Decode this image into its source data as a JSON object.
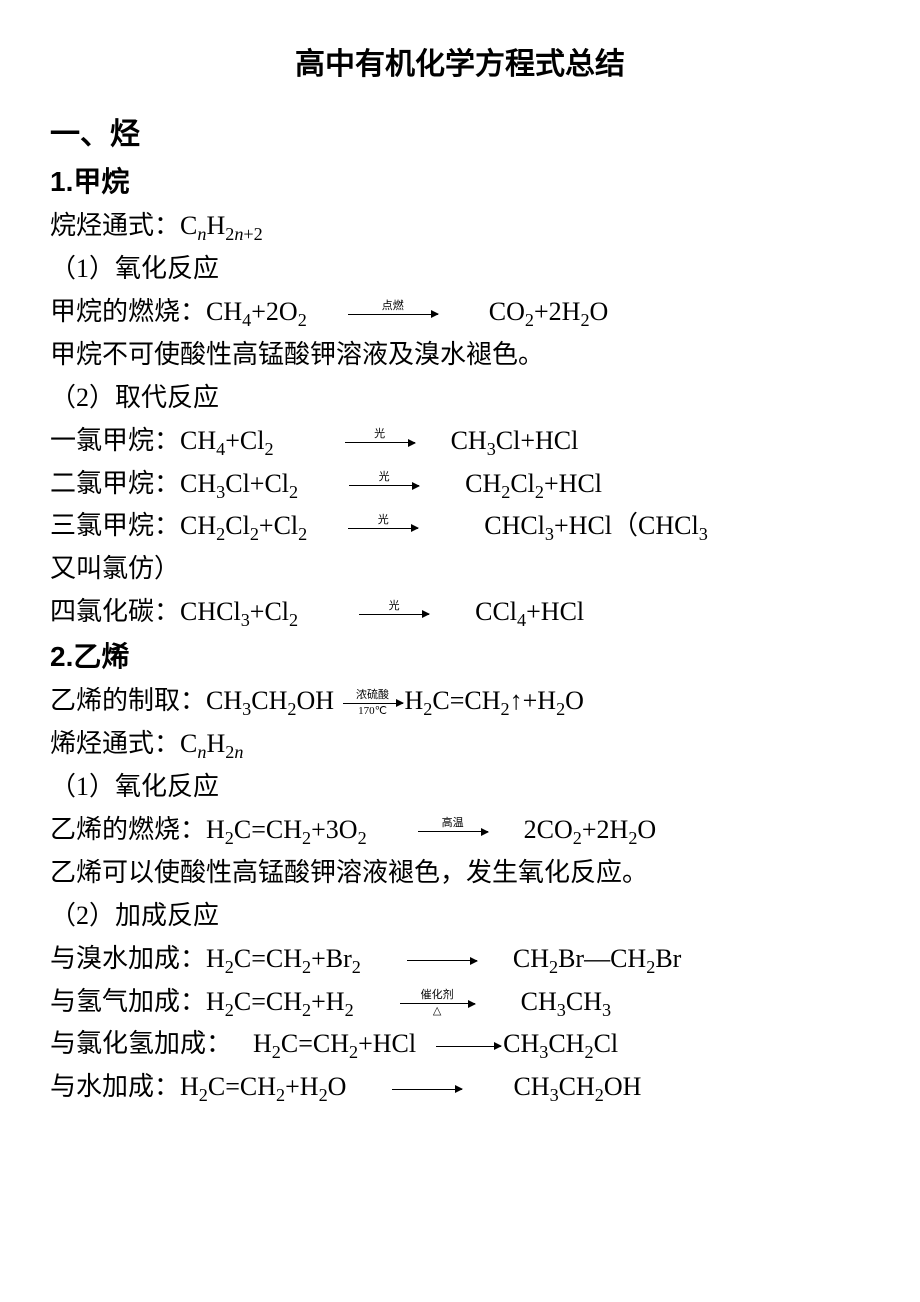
{
  "doc": {
    "title": "高中有机化学方程式总结",
    "background_color": "#ffffff",
    "text_color": "#000000",
    "title_fontsize": 30,
    "heading_fontsize": 30,
    "body_fontsize": 26,
    "arrow_label_fontsize": 11,
    "lines": {
      "sec1": "一、烃",
      "sub1": "1.甲烷",
      "alkane_formula_label": "烷烃通式：",
      "alkane_formula": "C<sub><span class='subi'>n</span></sub>H<sub>2<span class='subi'>n</span>+2</sub>",
      "r1_1": "（1）氧化反应",
      "methane_burn_label": "甲烷的燃烧：",
      "methane_burn_lhs": "CH<sub>4</sub>+2O<sub>2</sub>",
      "methane_burn_cond": "点燃",
      "methane_burn_rhs": "CO<sub>2</sub>+2H<sub>2</sub>O",
      "methane_note": "甲烷不可使酸性高锰酸钾溶液及溴水褪色。",
      "r1_2": "（2）取代反应",
      "mono_label": "一氯甲烷：",
      "mono_lhs": "CH<sub>4</sub>+Cl<sub>2</sub>",
      "light": "光",
      "mono_rhs": "CH<sub>3</sub>Cl+HCl",
      "di_label": "二氯甲烷：",
      "di_lhs": "CH<sub>3</sub>Cl+Cl<sub>2</sub>",
      "di_rhs": "CH<sub>2</sub>Cl<sub>2</sub>+HCl",
      "tri_label": "三氯甲烷：",
      "tri_lhs": "CH<sub>2</sub>Cl<sub>2</sub>+Cl<sub>2</sub>",
      "tri_rhs_a": "CHCl<sub>3</sub>+HCl（CHCl<sub>3</sub>",
      "tri_rhs_b": "又叫氯仿）",
      "tetra_label": "四氯化碳：",
      "tetra_lhs": "CHCl<sub>3</sub>+Cl<sub>2</sub>",
      "tetra_rhs": "CCl<sub>4</sub>+HCl",
      "sub2": "2.乙烯",
      "ethene_prep_label": "乙烯的制取：",
      "ethene_prep_lhs": "CH<sub>3</sub>CH<sub>2</sub>OH",
      "ethene_prep_top": "浓硫酸",
      "ethene_prep_bot": "170℃",
      "ethene_prep_rhs": "H<sub>2</sub>C=CH<sub>2</sub>↑+H<sub>2</sub>O",
      "alkene_formula_label": "烯烃通式：",
      "alkene_formula": "C<sub><span class='subi'>n</span></sub>H<sub>2<span class='subi'>n</span></sub>",
      "r2_1": "（1）氧化反应",
      "ethene_burn_label": "乙烯的燃烧：",
      "ethene_burn_lhs": "H<sub>2</sub>C=CH<sub>2</sub>+3O<sub>2</sub>",
      "ethene_burn_cond": "高温",
      "ethene_burn_rhs": "2CO<sub>2</sub>+2H<sub>2</sub>O",
      "ethene_note": "乙烯可以使酸性高锰酸钾溶液褪色，发生氧化反应。",
      "r2_2": "（2）加成反应",
      "add_br_label": "与溴水加成：",
      "add_br_lhs": "H<sub>2</sub>C=CH<sub>2</sub>+Br<sub>2</sub>",
      "add_br_rhs": "CH<sub>2</sub>Br—CH<sub>2</sub>Br",
      "add_h2_label": "与氢气加成：",
      "add_h2_lhs": "H<sub>2</sub>C=CH<sub>2</sub>+H<sub>2</sub>",
      "add_h2_top": "催化剂",
      "add_h2_bot": "△",
      "add_h2_rhs": "CH<sub>3</sub>CH<sub>3</sub>",
      "add_hcl_label": "与氯化氢加成：",
      "add_hcl_lhs": "H<sub>2</sub>C=CH<sub>2</sub>+HCl",
      "add_hcl_rhs": "CH<sub>3</sub>CH<sub>2</sub>Cl",
      "add_h2o_label": "与水加成：",
      "add_h2o_lhs": "H<sub>2</sub>C=CH<sub>2</sub>+H<sub>2</sub>O",
      "add_h2o_rhs": "CH<sub>3</sub>CH<sub>2</sub>OH"
    }
  }
}
